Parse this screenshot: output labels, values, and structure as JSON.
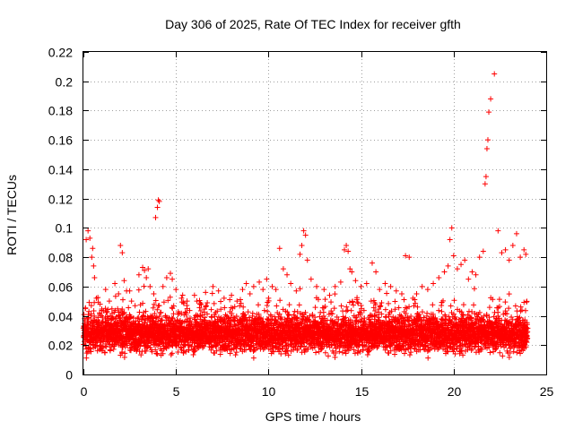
{
  "colors": {
    "series": "#ff0000",
    "grid": "#a0a0a0",
    "frame": "#000000"
  },
  "chart_data": {
    "type": "scatter",
    "title": "Day 306 of 2025, Rate Of TEC Index for receiver gfth",
    "xlabel": "GPS time / hours",
    "ylabel": "ROTI / TECUs",
    "xlim": [
      0,
      25
    ],
    "ylim": [
      0,
      0.22
    ],
    "xticks": [
      0,
      5,
      10,
      15,
      20,
      25
    ],
    "xtick_labels": [
      "0",
      "5",
      "10",
      "15",
      "20",
      "25"
    ],
    "yticks": [
      0,
      0.02,
      0.04,
      0.06,
      0.08,
      0.1,
      0.12,
      0.14,
      0.16,
      0.18,
      0.2,
      0.22
    ],
    "ytick_labels": [
      "0",
      "0.02",
      "0.04",
      "0.06",
      "0.08",
      "0.1",
      "0.12",
      "0.14",
      "0.16",
      "0.18",
      "0.2",
      "0.22"
    ],
    "grid": true,
    "marker": "+",
    "series": [
      {
        "name": "ROTI",
        "x": [
          0.1,
          0.15,
          0.25,
          0.35,
          0.45,
          0.5,
          0.55,
          0.6,
          0.7,
          0.9,
          1.2,
          1.4,
          1.7,
          1.9,
          2.0,
          2.1,
          2.2,
          2.5,
          2.6,
          3.0,
          3.2,
          3.3,
          3.4,
          3.5,
          3.6,
          3.8,
          3.9,
          4.0,
          4.05,
          4.1,
          4.3,
          4.5,
          4.7,
          4.8,
          5.0,
          5.3,
          5.6,
          6.0,
          6.3,
          6.6,
          7.0,
          7.3,
          7.6,
          8.0,
          8.3,
          8.6,
          8.8,
          9.0,
          9.2,
          9.5,
          9.7,
          9.9,
          10.0,
          10.2,
          10.4,
          10.6,
          10.8,
          11.0,
          11.2,
          11.5,
          11.7,
          11.8,
          11.9,
          12.0,
          12.1,
          12.3,
          12.6,
          13.0,
          13.3,
          13.6,
          13.9,
          14.1,
          14.2,
          14.3,
          14.4,
          14.5,
          14.7,
          15.0,
          15.3,
          15.6,
          15.8,
          16.0,
          16.3,
          16.6,
          16.9,
          17.2,
          17.4,
          17.6,
          17.8,
          18.0,
          18.3,
          18.6,
          18.9,
          19.2,
          19.5,
          19.7,
          19.8,
          19.9,
          20.0,
          20.2,
          20.4,
          20.6,
          20.8,
          21.0,
          21.2,
          21.4,
          21.6,
          21.7,
          21.75,
          21.8,
          21.85,
          21.9,
          22.0,
          22.2,
          22.4,
          22.6,
          22.8,
          23.0,
          23.2,
          23.4,
          23.6,
          23.8,
          23.9
        ],
        "y": [
          0.045,
          0.092,
          0.098,
          0.093,
          0.08,
          0.086,
          0.074,
          0.066,
          0.052,
          0.048,
          0.058,
          0.05,
          0.062,
          0.055,
          0.088,
          0.083,
          0.064,
          0.057,
          0.05,
          0.068,
          0.073,
          0.071,
          0.066,
          0.072,
          0.06,
          0.055,
          0.107,
          0.114,
          0.119,
          0.118,
          0.06,
          0.066,
          0.069,
          0.065,
          0.058,
          0.052,
          0.05,
          0.054,
          0.048,
          0.056,
          0.06,
          0.057,
          0.052,
          0.054,
          0.05,
          0.058,
          0.062,
          0.055,
          0.06,
          0.063,
          0.058,
          0.065,
          0.052,
          0.06,
          0.058,
          0.086,
          0.072,
          0.068,
          0.062,
          0.057,
          0.082,
          0.088,
          0.098,
          0.095,
          0.078,
          0.065,
          0.06,
          0.058,
          0.054,
          0.06,
          0.063,
          0.085,
          0.088,
          0.084,
          0.072,
          0.07,
          0.064,
          0.06,
          0.062,
          0.076,
          0.07,
          0.058,
          0.062,
          0.06,
          0.057,
          0.055,
          0.081,
          0.08,
          0.052,
          0.055,
          0.06,
          0.058,
          0.062,
          0.066,
          0.07,
          0.074,
          0.092,
          0.1,
          0.081,
          0.072,
          0.075,
          0.078,
          0.065,
          0.07,
          0.068,
          0.08,
          0.084,
          0.13,
          0.135,
          0.154,
          0.16,
          0.179,
          0.188,
          0.205,
          0.098,
          0.083,
          0.085,
          0.078,
          0.088,
          0.096,
          0.08,
          0.085,
          0.082
        ],
        "baseline_band": {
          "x_range": [
            0,
            24
          ],
          "typical_y_range": [
            0.01,
            0.045
          ]
        }
      }
    ]
  }
}
